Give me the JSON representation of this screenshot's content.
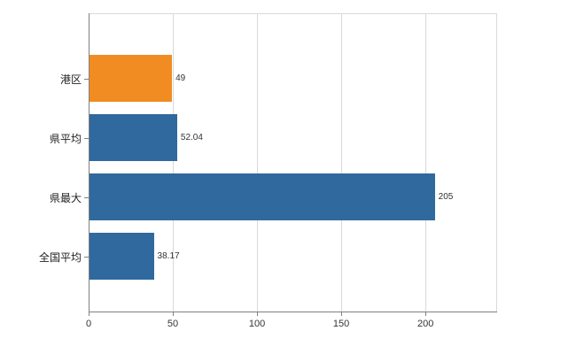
{
  "chart_data": {
    "type": "bar",
    "orientation": "horizontal",
    "title": "",
    "xlabel": "",
    "ylabel": "",
    "categories": [
      "港区",
      "県平均",
      "県最大",
      "全国平均"
    ],
    "values": [
      49,
      52.04,
      205,
      38.17
    ],
    "value_labels": [
      "49",
      "52.04",
      "205",
      "38.17"
    ],
    "bar_colors": [
      "#f08c22",
      "#30699e",
      "#30699e",
      "#30699e"
    ],
    "xticks": [
      0,
      50,
      100,
      150,
      200
    ],
    "xtick_labels": [
      "0",
      "50",
      "100",
      "150",
      "200"
    ],
    "xlim": [
      0,
      242
    ],
    "grid": true,
    "legend": "none",
    "colors": {
      "highlight_orange": "#f08c22",
      "series_blue": "#30699e",
      "gridline": "#d9d9d9",
      "axis": "#808080",
      "text": "#333333",
      "background": "#ffffff"
    }
  }
}
